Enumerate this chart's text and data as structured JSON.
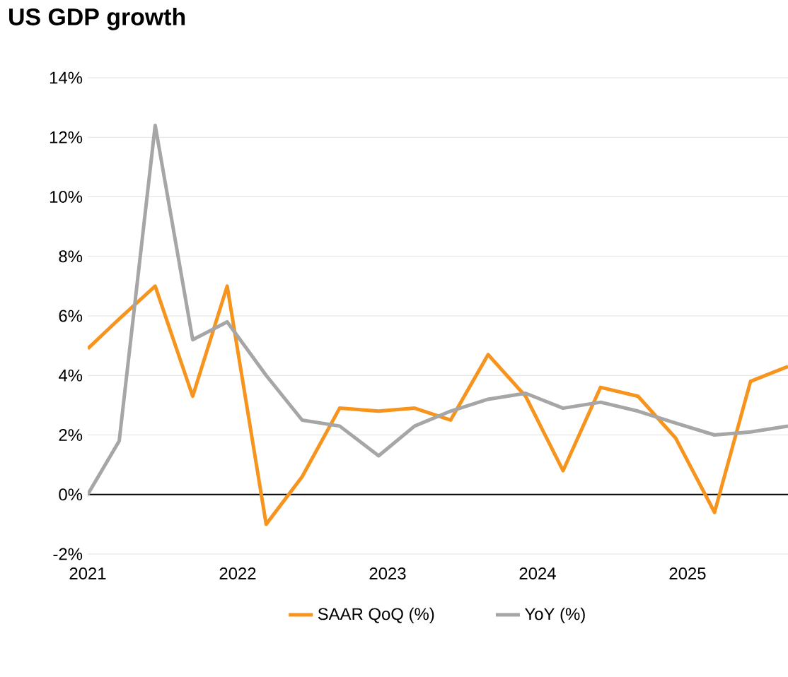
{
  "chart_data": {
    "type": "line",
    "title": "US GDP growth",
    "x": [
      2021.0,
      2021.21,
      2021.45,
      2021.7,
      2021.93,
      2022.19,
      2022.43,
      2022.68,
      2022.94,
      2023.18,
      2023.42,
      2023.67,
      2023.92,
      2024.17,
      2024.42,
      2024.67,
      2024.92,
      2025.18,
      2025.42,
      2025.67
    ],
    "series": [
      {
        "name": "SAAR QoQ (%)",
        "color": "#f7941d",
        "values": [
          4.9,
          5.9,
          7.0,
          3.3,
          7.0,
          -1.0,
          0.6,
          2.9,
          2.8,
          2.9,
          2.5,
          4.7,
          3.3,
          0.8,
          3.6,
          3.3,
          1.9,
          -0.6,
          3.8,
          4.3
        ]
      },
      {
        "name": "YoY (%)",
        "color": "#a6a6a6",
        "values": [
          0.0,
          1.8,
          12.4,
          5.2,
          5.8,
          4.0,
          2.5,
          2.3,
          1.3,
          2.3,
          2.8,
          3.2,
          3.4,
          2.9,
          3.1,
          2.8,
          2.4,
          2.0,
          2.1,
          2.3
        ]
      }
    ],
    "xlim": [
      2021,
      2025.67
    ],
    "xticks": [
      {
        "value": 2021,
        "label": "2021"
      },
      {
        "value": 2022,
        "label": "2022"
      },
      {
        "value": 2023,
        "label": "2023"
      },
      {
        "value": 2024,
        "label": "2024"
      },
      {
        "value": 2025,
        "label": "2025"
      }
    ],
    "ylim": [
      -2,
      14
    ],
    "yticks": [
      {
        "value": -2,
        "label": "-2%"
      },
      {
        "value": 0,
        "label": "0%"
      },
      {
        "value": 2,
        "label": "2%"
      },
      {
        "value": 4,
        "label": "4%"
      },
      {
        "value": 6,
        "label": "6%"
      },
      {
        "value": 8,
        "label": "8%"
      },
      {
        "value": 10,
        "label": "10%"
      },
      {
        "value": 12,
        "label": "12%"
      },
      {
        "value": 14,
        "label": "14%"
      }
    ],
    "grid": "y",
    "legend": "bottom",
    "marker": "none",
    "line_style": "solid"
  }
}
